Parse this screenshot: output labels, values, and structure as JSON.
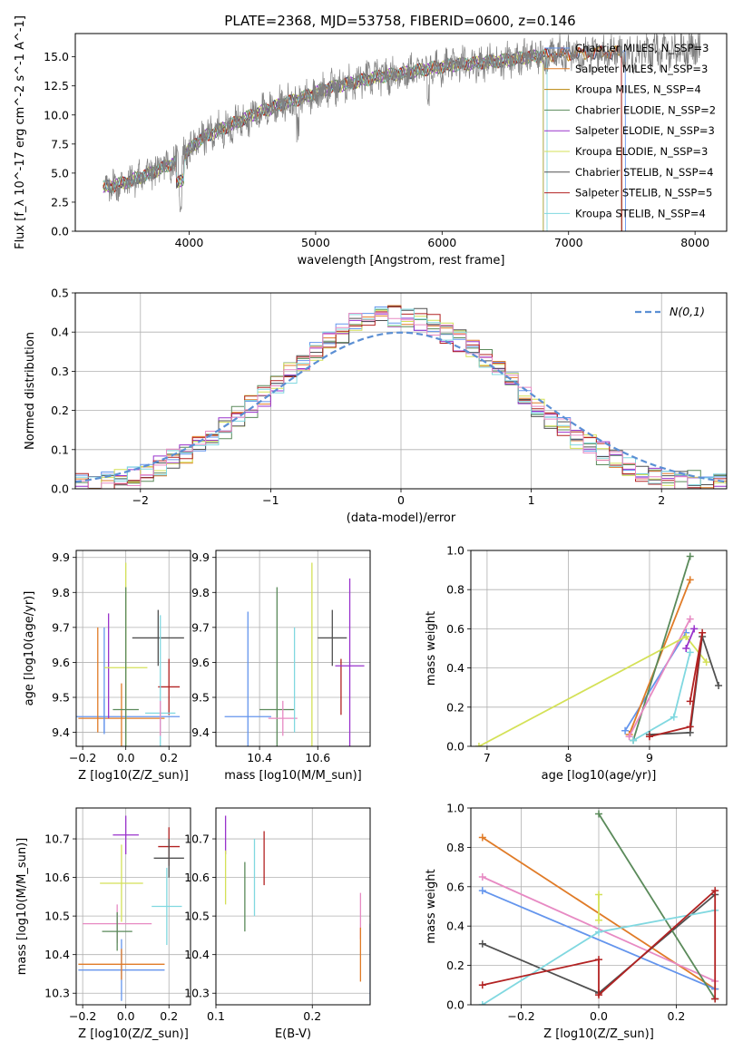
{
  "figure": {
    "title": "PLATE=2368, MJD=53758, FIBERID=0600, z=0.146"
  },
  "chart_data": [
    {
      "id": "spectrum",
      "type": "line",
      "title": "PLATE=2368, MJD=53758, FIBERID=0600, z=0.146",
      "xlabel": "wavelength [Angstrom, rest frame]",
      "ylabel": "Flux [f_λ 10^-17 erg cm^-2 s^-1 A^-1]",
      "xlim": [
        3100,
        8250
      ],
      "ylim": [
        0,
        17
      ],
      "xticks": [
        4000,
        5000,
        6000,
        7000,
        8000
      ],
      "yticks": [
        0.0,
        2.5,
        5.0,
        7.5,
        10.0,
        12.5,
        15.0
      ],
      "legend_position": "right",
      "observed": {
        "name": "",
        "color": "#808080",
        "x": [
          3350,
          3500,
          3700,
          3900,
          4100,
          4300,
          4500,
          4700,
          4900,
          5100,
          5300,
          5500,
          5700,
          5900,
          6100,
          6300,
          6500,
          6700,
          6900,
          7100,
          7300,
          7500,
          7700,
          7900,
          8000
        ],
        "y": [
          3.8,
          4.2,
          5.0,
          6.0,
          8.0,
          9.0,
          10.0,
          10.8,
          11.5,
          12.3,
          12.8,
          13.3,
          13.6,
          14.0,
          14.3,
          14.5,
          14.7,
          15.0,
          15.2,
          15.3,
          15.4,
          15.3,
          15.5,
          15.6,
          15.7
        ]
      },
      "series": [
        {
          "name": "Chabrier MILES, N_SSP=3",
          "color": "#6495ED",
          "cut_right": 7450
        },
        {
          "name": "Salpeter MILES, N_SSP=3",
          "color": "#E07B27",
          "cut_right": 7420
        },
        {
          "name": "Kroupa MILES, N_SSP=4",
          "color": "#B8860B",
          "cut_right": 7420
        },
        {
          "name": "Chabrier ELODIE, N_SSP=2",
          "color": "#5A8A5A",
          "cut_right": 6800
        },
        {
          "name": "Salpeter ELODIE, N_SSP=3",
          "color": "#9932CC",
          "cut_right": 6800
        },
        {
          "name": "Kroupa ELODIE, N_SSP=3",
          "color": "#D4E157",
          "cut_right": 6800
        },
        {
          "name": "Chabrier STELIB, N_SSP=4",
          "color": "#505050",
          "cut_right": 7420
        },
        {
          "name": "Salpeter STELIB, N_SSP=5",
          "color": "#B22222",
          "cut_right": 7420
        },
        {
          "name": "Kroupa STELIB, N_SSP=4",
          "color": "#80D8E0",
          "cut_right": 6830
        }
      ]
    },
    {
      "id": "residuals",
      "type": "step",
      "xlabel": "(data-model)/error",
      "ylabel": "Normed distribution",
      "xlim": [
        -2.5,
        2.5
      ],
      "ylim": [
        0,
        0.5
      ],
      "xticks": [
        -2,
        -1,
        0,
        1,
        2
      ],
      "yticks": [
        0.0,
        0.1,
        0.2,
        0.3,
        0.4,
        0.5
      ],
      "grid": true,
      "legend": [
        {
          "name": "N(0,1)",
          "style": "dashed",
          "color": "#5B8FD4"
        }
      ],
      "legend_position": "top-right",
      "bin_width": 0.1,
      "gaussian": {
        "mean": 0,
        "sigma": 1,
        "color": "#5B8FD4"
      }
    },
    {
      "id": "age_vs_Z",
      "type": "errorbar",
      "xlabel": "Z [log10(Z/Z_sun)]",
      "ylabel": "age [log10(age/yr)]",
      "xlim": [
        -0.23,
        0.3
      ],
      "ylim": [
        9.36,
        9.92
      ],
      "xticks": [
        -0.2,
        0.0,
        0.2
      ],
      "yticks": [
        9.4,
        9.5,
        9.6,
        9.7,
        9.8,
        9.9
      ],
      "grid": true,
      "points": [
        {
          "color": "#6495ED",
          "x": -0.1,
          "xerr": 0.35,
          "y": 9.445,
          "yerr": 0.05
        },
        {
          "color": "#E07B27",
          "x": -0.02,
          "xerr": 0.2,
          "y": 9.44,
          "yerr": 0.1
        },
        {
          "color": "#6495ED",
          "x": -0.1,
          "y": 9.55,
          "yerr": 0.15
        },
        {
          "color": "#E07B27",
          "x": -0.13,
          "y": 9.55,
          "yerr": 0.15
        },
        {
          "color": "#9932CC",
          "x": -0.08,
          "y": 9.59,
          "yerr": 0.15
        },
        {
          "color": "#D4E157",
          "x": 0.0,
          "xerr": 0.1,
          "y": 9.585,
          "yerr": 0.3
        },
        {
          "color": "#5A8A5A",
          "x": 0.0,
          "xerr": 0.06,
          "y": 9.465,
          "yerr": 0.35
        },
        {
          "color": "#505050",
          "x": 0.15,
          "xerr": 0.12,
          "y": 9.67,
          "yerr": 0.08
        },
        {
          "color": "#B22222",
          "x": 0.2,
          "xerr": 0.05,
          "y": 9.53,
          "yerr": 0.08
        },
        {
          "color": "#80D8E0",
          "x": 0.16,
          "xerr": 0.07,
          "y": 9.455,
          "yerr": 0.28
        },
        {
          "color": "#E78AC3",
          "x": 0.16,
          "y": 9.44,
          "yerr": 0.05
        }
      ]
    },
    {
      "id": "age_vs_mass",
      "type": "errorbar",
      "xlabel": "mass [log10(M/M_sun)]",
      "ylabel": "",
      "xlim": [
        10.25,
        10.78
      ],
      "ylim": [
        9.36,
        9.92
      ],
      "xticks": [
        10.4,
        10.6
      ],
      "yticks": [
        9.4,
        9.5,
        9.6,
        9.7,
        9.8,
        9.9
      ],
      "grid": true,
      "points": [
        {
          "color": "#6495ED",
          "x": 10.36,
          "xerr": 0.08,
          "y": 9.445,
          "yerr": 0.3
        },
        {
          "color": "#5A8A5A",
          "x": 10.46,
          "xerr": 0.06,
          "y": 9.465,
          "yerr": 0.35
        },
        {
          "color": "#E78AC3",
          "x": 10.48,
          "xerr": 0.05,
          "y": 9.44,
          "yerr": 0.05
        },
        {
          "color": "#80D8E0",
          "x": 10.52,
          "y": 9.55,
          "yerr": 0.15
        },
        {
          "color": "#D4E157",
          "x": 10.58,
          "y": 9.585,
          "yerr": 0.3
        },
        {
          "color": "#505050",
          "x": 10.65,
          "xerr": 0.05,
          "y": 9.67,
          "yerr": 0.08
        },
        {
          "color": "#B22222",
          "x": 10.68,
          "y": 9.53,
          "yerr": 0.08
        },
        {
          "color": "#9932CC",
          "x": 10.71,
          "xerr": 0.05,
          "y": 9.59,
          "yerr": 0.25
        }
      ]
    },
    {
      "id": "weight_vs_age",
      "type": "line",
      "xlabel": "age [log10(age/yr)]",
      "ylabel": "mass weight",
      "xlim": [
        6.8,
        9.95
      ],
      "ylim": [
        0,
        1.0
      ],
      "xticks": [
        7,
        8,
        9
      ],
      "yticks": [
        0.0,
        0.2,
        0.4,
        0.6,
        0.8,
        1.0
      ],
      "grid": true,
      "series": [
        {
          "color": "#6495ED",
          "x": [
            8.7,
            9.45
          ],
          "y": [
            0.08,
            0.58
          ]
        },
        {
          "color": "#E07B27",
          "x": [
            8.75,
            9.5
          ],
          "y": [
            0.06,
            0.85
          ]
        },
        {
          "color": "#5A8A5A",
          "x": [
            8.8,
            9.5
          ],
          "y": [
            0.03,
            0.97
          ]
        },
        {
          "color": "#E78AC3",
          "x": [
            8.75,
            9.5
          ],
          "y": [
            0.05,
            0.65
          ]
        },
        {
          "color": "#D4E157",
          "x": [
            6.9,
            9.45,
            9.7
          ],
          "y": [
            0.0,
            0.56,
            0.43
          ]
        },
        {
          "color": "#80D8E0",
          "x": [
            8.8,
            9.3,
            9.5
          ],
          "y": [
            0.03,
            0.15,
            0.48
          ]
        },
        {
          "color": "#505050",
          "x": [
            9.0,
            9.5,
            9.65,
            9.85
          ],
          "y": [
            0.06,
            0.07,
            0.56,
            0.31
          ]
        },
        {
          "color": "#B22222",
          "x": [
            9.0,
            9.5,
            9.65,
            9.5
          ],
          "y": [
            0.05,
            0.1,
            0.58,
            0.23
          ]
        },
        {
          "color": "#9932CC",
          "x": [
            9.45,
            9.55
          ],
          "y": [
            0.5,
            0.6
          ]
        }
      ]
    },
    {
      "id": "mass_vs_Z",
      "type": "errorbar",
      "xlabel": "Z [log10(Z/Z_sun)]",
      "ylabel": "mass [log10(M/M_sun)]",
      "xlim": [
        -0.23,
        0.3
      ],
      "ylim": [
        10.27,
        10.78
      ],
      "xticks": [
        -0.2,
        0.0,
        0.2
      ],
      "yticks": [
        10.3,
        10.4,
        10.5,
        10.6,
        10.7
      ],
      "grid": true,
      "points": [
        {
          "color": "#6495ED",
          "x": -0.02,
          "xerr": 0.2,
          "y": 10.36,
          "yerr": 0.08
        },
        {
          "color": "#E07B27",
          "x": -0.02,
          "xerr": 0.2,
          "y": 10.375,
          "yerr": 0.04
        },
        {
          "color": "#E78AC3",
          "x": -0.04,
          "xerr": 0.16,
          "y": 10.48,
          "yerr": 0.05
        },
        {
          "color": "#5A8A5A",
          "x": -0.04,
          "xerr": 0.07,
          "y": 10.46,
          "yerr": 0.05
        },
        {
          "color": "#D4E157",
          "x": -0.02,
          "xerr": 0.1,
          "y": 10.585,
          "yerr": 0.1
        },
        {
          "color": "#9932CC",
          "x": 0.0,
          "xerr": 0.06,
          "y": 10.71,
          "yerr": 0.05
        },
        {
          "color": "#B22222",
          "x": 0.2,
          "xerr": 0.05,
          "y": 10.68,
          "yerr": 0.05
        },
        {
          "color": "#505050",
          "x": 0.2,
          "xerr": 0.07,
          "y": 10.65,
          "yerr": 0.05
        },
        {
          "color": "#80D8E0",
          "x": 0.19,
          "xerr": 0.07,
          "y": 10.525,
          "yerr": 0.1
        }
      ]
    },
    {
      "id": "mass_vs_EBV",
      "type": "errorbar",
      "xlabel": "E(B-V)",
      "ylabel": "",
      "xlim": [
        0.1,
        0.26
      ],
      "ylim": [
        10.27,
        10.78
      ],
      "xticks": [
        0.1,
        0.2
      ],
      "yticks": [
        10.3,
        10.4,
        10.5,
        10.6,
        10.7
      ],
      "grid": true,
      "points": [
        {
          "color": "#9932CC",
          "x": 0.11,
          "y": 10.71,
          "yerr": 0.05
        },
        {
          "color": "#D4E157",
          "x": 0.11,
          "y": 10.6,
          "yerr": 0.07
        },
        {
          "color": "#5A8A5A",
          "x": 0.13,
          "y": 10.55,
          "yerr": 0.09
        },
        {
          "color": "#80D8E0",
          "x": 0.14,
          "y": 10.6,
          "yerr": 0.1
        },
        {
          "color": "#B22222",
          "x": 0.15,
          "y": 10.65,
          "yerr": 0.07
        },
        {
          "color": "#E78AC3",
          "x": 0.25,
          "y": 10.5,
          "yerr": 0.06
        },
        {
          "color": "#E07B27",
          "x": 0.25,
          "y": 10.4,
          "yerr": 0.07
        },
        {
          "color": "#6495ED",
          "x": 0.26,
          "y": 10.38,
          "yerr": 0.1
        }
      ]
    },
    {
      "id": "weight_vs_Z",
      "type": "line",
      "xlabel": "Z [log10(Z/Z_sun)]",
      "ylabel": "mass weight",
      "xlim": [
        -0.33,
        0.33
      ],
      "ylim": [
        0,
        1.0
      ],
      "xticks": [
        -0.2,
        0.0,
        0.2
      ],
      "yticks": [
        0.0,
        0.2,
        0.4,
        0.6,
        0.8,
        1.0
      ],
      "grid": true,
      "series": [
        {
          "color": "#E07B27",
          "x": [
            -0.3,
            0.3
          ],
          "y": [
            0.85,
            0.08
          ]
        },
        {
          "color": "#E78AC3",
          "x": [
            -0.3,
            0.3
          ],
          "y": [
            0.65,
            0.12
          ]
        },
        {
          "color": "#6495ED",
          "x": [
            -0.3,
            0.3
          ],
          "y": [
            0.58,
            0.08
          ]
        },
        {
          "color": "#505050",
          "x": [
            -0.3,
            0.0,
            0.3
          ],
          "y": [
            0.31,
            0.06,
            0.56
          ]
        },
        {
          "color": "#5A8A5A",
          "x": [
            0.0,
            0.3
          ],
          "y": [
            0.97,
            0.03
          ]
        },
        {
          "color": "#80D8E0",
          "x": [
            -0.3,
            0.0,
            0.3
          ],
          "y": [
            0.0,
            0.37,
            0.48
          ]
        },
        {
          "color": "#B22222",
          "x": [
            -0.3,
            0.0,
            0.0,
            0.3,
            0.3
          ],
          "y": [
            0.1,
            0.23,
            0.05,
            0.58,
            0.03
          ]
        },
        {
          "color": "#D4E157",
          "x": [
            0.0,
            0.0
          ],
          "y": [
            0.43,
            0.56
          ]
        }
      ]
    }
  ]
}
